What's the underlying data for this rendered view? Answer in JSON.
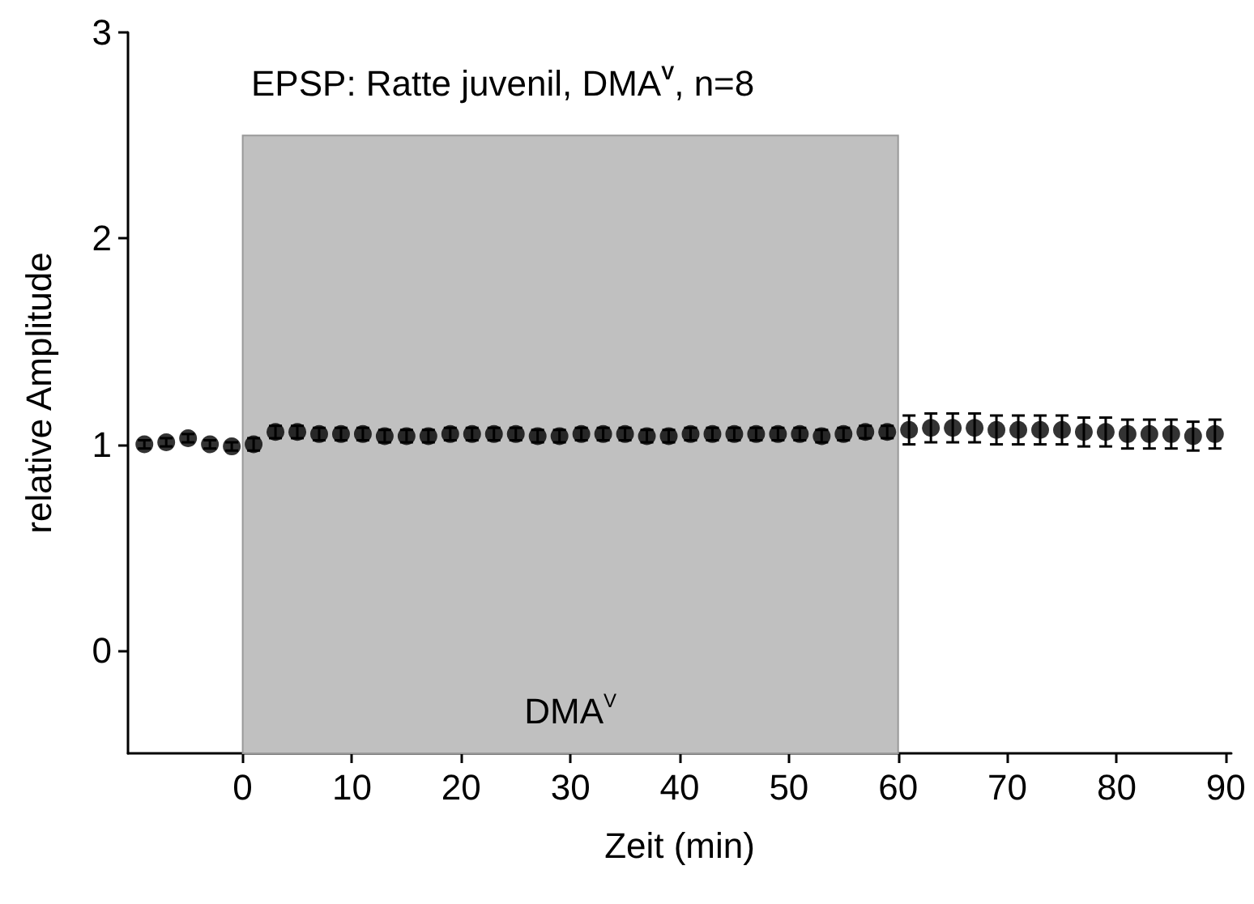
{
  "chart_data": {
    "type": "scatter",
    "title": "EPSP: Ratte juvenil, DMA$^{V}$, n=8",
    "xlabel": "Zeit (min)",
    "ylabel": "relative Amplitude",
    "x": [
      -9,
      -7,
      -5,
      -3,
      -1,
      1,
      3,
      5,
      7,
      9,
      11,
      13,
      15,
      17,
      19,
      21,
      23,
      25,
      27,
      29,
      31,
      33,
      35,
      37,
      39,
      41,
      43,
      45,
      47,
      49,
      51,
      53,
      55,
      57,
      59,
      61,
      63,
      65,
      67,
      69,
      71,
      73,
      75,
      77,
      79,
      81,
      83,
      85,
      87,
      89
    ],
    "series": [
      {
        "color": "#000000",
        "values": [
          1.0,
          1.01,
          1.03,
          1.0,
          0.99,
          1.0,
          1.06,
          1.06,
          1.05,
          1.05,
          1.05,
          1.04,
          1.04,
          1.04,
          1.05,
          1.05,
          1.05,
          1.05,
          1.04,
          1.04,
          1.05,
          1.05,
          1.05,
          1.04,
          1.04,
          1.05,
          1.05,
          1.05,
          1.05,
          1.05,
          1.05,
          1.04,
          1.05,
          1.06,
          1.06,
          1.07,
          1.08,
          1.08,
          1.08,
          1.07,
          1.07,
          1.07,
          1.07,
          1.06,
          1.06,
          1.05,
          1.05,
          1.05,
          1.04,
          1.05
        ],
        "errors": [
          0.02,
          0.02,
          0.02,
          0.02,
          0.02,
          0.03,
          0.03,
          0.03,
          0.03,
          0.03,
          0.03,
          0.03,
          0.03,
          0.03,
          0.03,
          0.03,
          0.03,
          0.03,
          0.03,
          0.03,
          0.03,
          0.03,
          0.03,
          0.03,
          0.03,
          0.03,
          0.03,
          0.03,
          0.03,
          0.03,
          0.03,
          0.03,
          0.03,
          0.03,
          0.03,
          0.07,
          0.07,
          0.07,
          0.07,
          0.07,
          0.07,
          0.07,
          0.07,
          0.07,
          0.07,
          0.07,
          0.07,
          0.07,
          0.07,
          0.07
        ]
      }
    ],
    "marker": "circle",
    "xlim": [
      -10.5,
      90.5
    ],
    "xticks": [
      0,
      10,
      20,
      30,
      40,
      50,
      60,
      70,
      80,
      90
    ],
    "ylim": [
      -0.5,
      3
    ],
    "yticks": [
      0,
      1,
      2,
      3
    ],
    "bands": [
      {
        "axis": "x",
        "from": 0,
        "to": 60,
        "label": "DMA$^{V}$",
        "color": "#c0c0c0"
      }
    ]
  }
}
